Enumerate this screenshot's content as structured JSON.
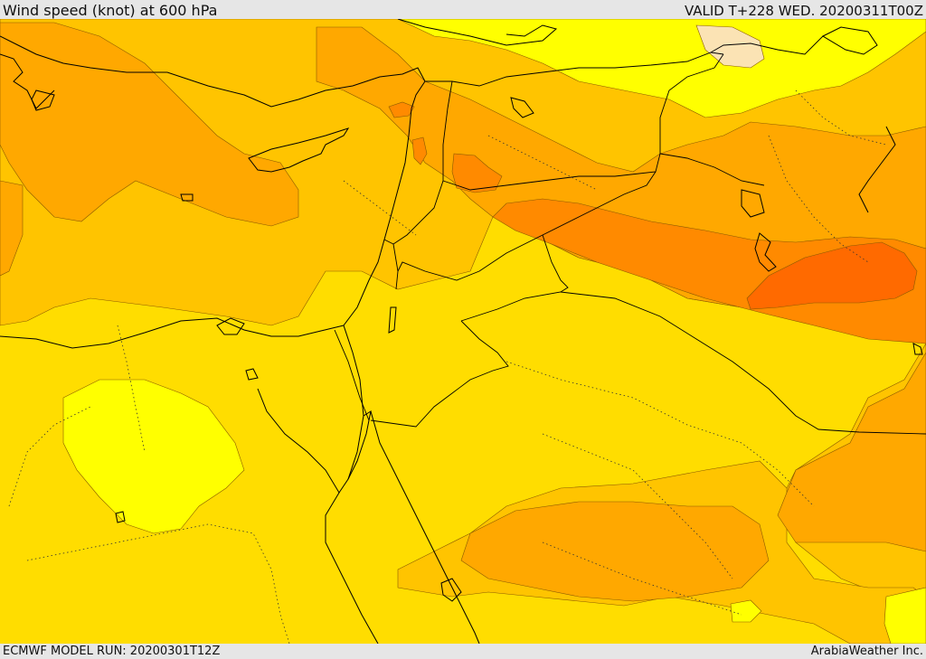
{
  "header": {
    "title": "Wind speed (knot) at 600 hPa",
    "valid": "VALID T+228 WED. 20200311T00Z"
  },
  "footer": {
    "model_run": "ECMWF MODEL RUN: 20200301T12Z",
    "credit": "ArabiaWeather Inc."
  },
  "map": {
    "variable": "wind speed",
    "units": "knot",
    "level": "600 hPa",
    "palette": {
      "very_light": "#ffffff66",
      "pale": "#fbe3b4",
      "yellow": "#ffff00",
      "gold": "#ffdd00",
      "light_orange": "#ffc400",
      "orange": "#ffa800",
      "dark_orange": "#ff8a00",
      "red_orange": "#ff6a00",
      "coastline": "#000000",
      "border": "#000000",
      "contour": "#8a5a00"
    }
  }
}
